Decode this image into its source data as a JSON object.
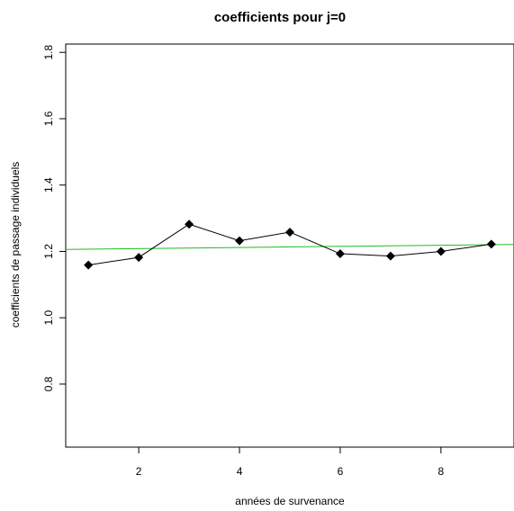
{
  "chart_data": {
    "type": "line",
    "title": "coefficients pour j=0",
    "xlabel": "années de survenance",
    "ylabel": "coefficients de passage individuels",
    "x": [
      1,
      2,
      3,
      4,
      5,
      6,
      7,
      8,
      9
    ],
    "series": [
      {
        "values": [
          1.159,
          1.182,
          1.282,
          1.232,
          1.258,
          1.193,
          1.186,
          1.2,
          1.222
        ],
        "color": "#000000",
        "marker": "diamond",
        "line": true
      }
    ],
    "reference_line": {
      "x": [
        0.55,
        9.45
      ],
      "y": [
        1.206,
        1.221
      ],
      "color": "#22bb22"
    },
    "xlim": [
      0.55,
      9.45
    ],
    "ylim": [
      0.61,
      1.825
    ],
    "xticks": [
      2,
      4,
      6,
      8
    ],
    "xtick_labels": [
      "2",
      "4",
      "6",
      "8"
    ],
    "yticks": [
      0.8,
      1.0,
      1.2,
      1.4,
      1.6,
      1.8
    ],
    "ytick_labels": [
      "0.8",
      "1.0",
      "1.2",
      "1.4",
      "1.6",
      "1.8"
    ],
    "grid": false,
    "legend": "none"
  }
}
